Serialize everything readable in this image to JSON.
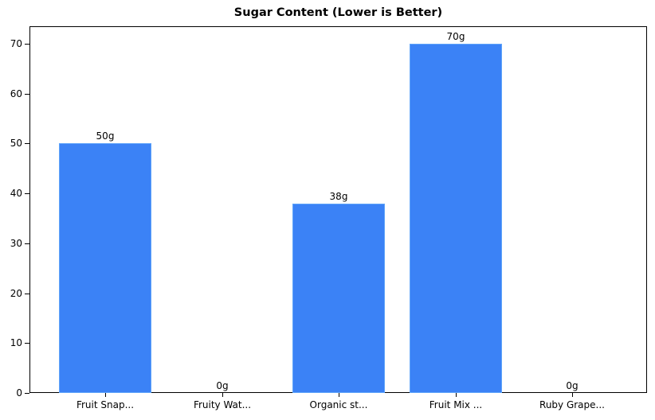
{
  "chart_data": {
    "type": "bar",
    "title": "Sugar Content (Lower is Better)",
    "xlabel": "",
    "ylabel": "",
    "categories": [
      "Fruit Snap...",
      "Fruity Wat...",
      "Organic st...",
      "Fruit Mix ...",
      "Ruby Grape..."
    ],
    "values": [
      50,
      0,
      38,
      70,
      0
    ],
    "value_labels": [
      "50g",
      "0g",
      "38g",
      "70g",
      "0g"
    ],
    "ylim": [
      0,
      73.5
    ],
    "yticks": [
      0,
      10,
      20,
      30,
      40,
      50,
      60,
      70
    ],
    "grid": false,
    "legend": null,
    "bar_color": "#3b82f6",
    "bar_edge_color": "#60a5fa"
  }
}
